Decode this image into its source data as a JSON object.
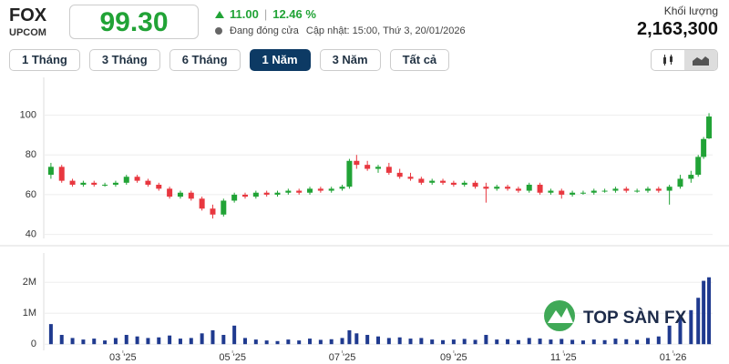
{
  "header": {
    "ticker": "FOX",
    "exchange": "UPCOM",
    "price": "99.30",
    "change": "11.00",
    "change_pct": "12.46 %",
    "status": "Đang đóng cửa",
    "updated": "Cập nhật: 15:00, Thứ 3, 20/01/2026",
    "volume_label": "Khối lượng",
    "volume": "2,163,300"
  },
  "buttons": [
    "1 Tháng",
    "3 Tháng",
    "6 Tháng",
    "1 Năm",
    "3 Năm",
    "Tất cả"
  ],
  "active_button": 3,
  "chart_data": {
    "type": "candlestick",
    "watermark": "TOP SÀN FX",
    "up_color": "#21a336",
    "down_color": "#e8373f",
    "volume_color": "#1f3a8f",
    "grid": true,
    "x": [
      0,
      6,
      12,
      18,
      24,
      30,
      36,
      42,
      48,
      54,
      60,
      66,
      72,
      78,
      84,
      90,
      96,
      102,
      108,
      114,
      120,
      126,
      132,
      138,
      144,
      150,
      156,
      162,
      166,
      170,
      176,
      182,
      188,
      194,
      200,
      206,
      212,
      218,
      224,
      230,
      236,
      242,
      248,
      254,
      260,
      266,
      272,
      278,
      284,
      290,
      296,
      302,
      308,
      314,
      320,
      326,
      332,
      338,
      344,
      350,
      356,
      360,
      363,
      366
    ],
    "open": [
      70,
      74,
      67,
      65,
      66,
      65,
      65,
      66,
      69,
      67,
      65,
      63,
      59,
      61,
      58,
      53,
      50,
      57,
      60,
      59,
      61,
      60,
      61,
      62,
      61,
      63,
      62,
      63,
      64,
      77,
      75,
      73,
      74,
      71,
      69,
      68,
      66,
      67,
      66,
      65,
      66,
      64,
      63,
      64,
      63,
      62,
      65,
      61,
      62,
      60,
      61,
      61,
      62,
      62,
      63,
      62,
      62,
      63,
      62,
      64,
      68,
      70,
      79,
      88.3
    ],
    "high": [
      76,
      75,
      68,
      67,
      67,
      66,
      67,
      70,
      70,
      68,
      66,
      64,
      62,
      62,
      59,
      55,
      58,
      61,
      61,
      62,
      62,
      62,
      63,
      63,
      64,
      64,
      64,
      65,
      78,
      80,
      77,
      75,
      76,
      73,
      71,
      69,
      68,
      68,
      67,
      67,
      67,
      66,
      65,
      65,
      64,
      66,
      66,
      63,
      63,
      62,
      62,
      63,
      63,
      64,
      64,
      63,
      64,
      64,
      65,
      70,
      72,
      80,
      89,
      101
    ],
    "low": [
      68,
      66,
      64,
      64,
      64,
      64,
      64,
      65,
      66,
      64,
      62,
      58,
      58,
      57,
      52,
      48,
      49,
      56,
      58,
      58,
      59,
      59,
      60,
      60,
      60,
      61,
      61,
      62,
      63,
      73,
      72,
      71,
      70,
      68,
      67,
      65,
      65,
      65,
      64,
      64,
      63,
      56,
      62,
      62,
      61,
      61,
      60,
      60,
      58,
      59,
      60,
      60,
      61,
      61,
      61,
      61,
      61,
      61,
      55,
      63,
      66,
      69,
      78,
      88
    ],
    "close": [
      74,
      67,
      65,
      66,
      65,
      65,
      66,
      69,
      67,
      65,
      63,
      59,
      61,
      58,
      53,
      50,
      57,
      60,
      59,
      61,
      60,
      61,
      62,
      61,
      63,
      62,
      63,
      64,
      77,
      75,
      73,
      74,
      71,
      69,
      68,
      66,
      67,
      66,
      65,
      66,
      64,
      63,
      64,
      63,
      62,
      65,
      61,
      62,
      60,
      61,
      61,
      62,
      62,
      63,
      62,
      62,
      63,
      62,
      64,
      68,
      70,
      79,
      88,
      99.3
    ],
    "volume": [
      650000,
      300000,
      200000,
      150000,
      180000,
      120000,
      200000,
      300000,
      250000,
      200000,
      220000,
      280000,
      180000,
      200000,
      350000,
      450000,
      300000,
      600000,
      200000,
      150000,
      120000,
      100000,
      150000,
      120000,
      180000,
      140000,
      160000,
      200000,
      450000,
      350000,
      300000,
      250000,
      200000,
      220000,
      180000,
      200000,
      150000,
      130000,
      150000,
      170000,
      140000,
      300000,
      150000,
      160000,
      130000,
      200000,
      180000,
      150000,
      170000,
      140000,
      120000,
      150000,
      130000,
      180000,
      160000,
      140000,
      200000,
      250000,
      600000,
      900000,
      1100000,
      1500000,
      2050000,
      2163300
    ],
    "xlim": [
      -4,
      368
    ],
    "xticks": [
      {
        "value": 40,
        "label": "03 '25"
      },
      {
        "value": 101,
        "label": "05 '25"
      },
      {
        "value": 162,
        "label": "07 '25"
      },
      {
        "value": 224,
        "label": "09 '25"
      },
      {
        "value": 285,
        "label": "11 '25"
      },
      {
        "value": 346,
        "label": "01 '26"
      }
    ],
    "ylim": [
      38,
      119
    ],
    "yticks": [
      40,
      60,
      80,
      100
    ],
    "y2lim": [
      -200000,
      2950000
    ],
    "y2ticks": [
      0,
      {
        "value": 1000000,
        "label": "1M"
      },
      {
        "value": 2000000,
        "label": "2M"
      }
    ]
  }
}
